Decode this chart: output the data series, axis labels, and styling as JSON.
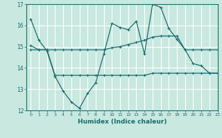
{
  "xlabel": "Humidex (Indice chaleur)",
  "xlim": [
    -0.5,
    23
  ],
  "ylim": [
    12,
    17
  ],
  "yticks": [
    12,
    13,
    14,
    15,
    16,
    17
  ],
  "xticks": [
    0,
    1,
    2,
    3,
    4,
    5,
    6,
    7,
    8,
    9,
    10,
    11,
    12,
    13,
    14,
    15,
    16,
    17,
    18,
    19,
    20,
    21,
    22,
    23
  ],
  "bg_color": "#c8e8e0",
  "grid_color": "#ffffff",
  "line_color": "#1a6b6b",
  "line1_y": [
    16.3,
    15.3,
    14.8,
    13.6,
    12.9,
    12.4,
    12.1,
    12.8,
    13.3,
    14.65,
    16.1,
    15.9,
    15.8,
    16.2,
    14.65,
    17.0,
    16.85,
    15.85,
    15.35,
    14.85,
    14.2,
    14.1,
    13.75,
    13.75
  ],
  "line2_y": [
    15.05,
    14.85,
    14.85,
    14.85,
    14.85,
    14.85,
    14.85,
    14.85,
    14.85,
    14.85,
    14.95,
    15.0,
    15.1,
    15.2,
    15.3,
    15.45,
    15.5,
    15.5,
    15.5,
    14.85,
    14.85,
    14.85,
    14.85,
    14.85
  ],
  "line3_y": [
    14.85,
    14.85,
    14.85,
    13.65,
    13.65,
    13.65,
    13.65,
    13.65,
    13.65,
    13.65,
    13.65,
    13.65,
    13.65,
    13.65,
    13.65,
    13.75,
    13.75,
    13.75,
    13.75,
    13.75,
    13.75,
    13.75,
    13.75,
    13.75
  ]
}
